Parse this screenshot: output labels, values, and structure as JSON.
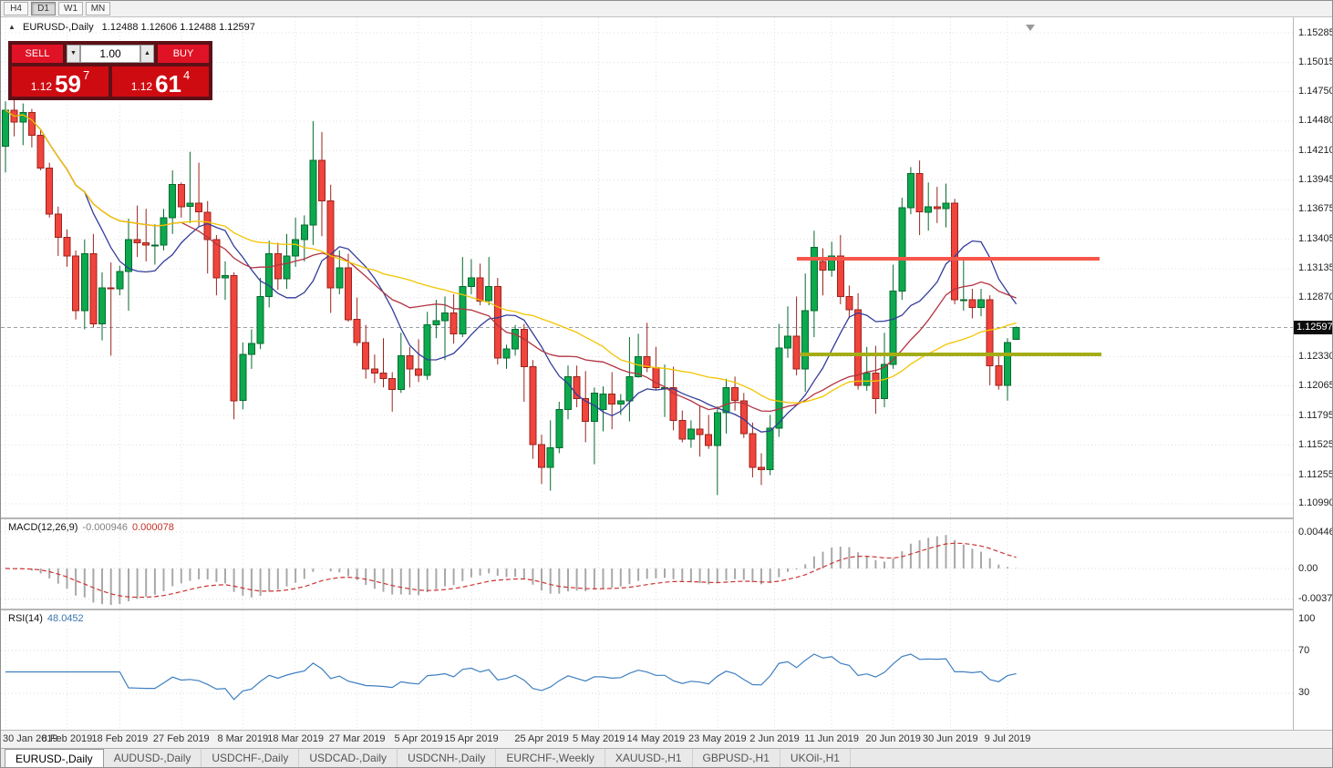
{
  "toolbar": {
    "timeframes": [
      "H4",
      "D1",
      "W1",
      "MN"
    ],
    "active_timeframe": "D1"
  },
  "chart": {
    "symbol": "EURUSD-,Daily",
    "ohlc": "1.12488 1.12606 1.12488 1.12597"
  },
  "one_click": {
    "sell_label": "SELL",
    "buy_label": "BUY",
    "volume": "1.00",
    "sell_price": {
      "prefix": "1.12",
      "big": "59",
      "sup": "7"
    },
    "buy_price": {
      "prefix": "1.12",
      "big": "61",
      "sup": "4"
    }
  },
  "macd": {
    "name": "MACD(12,26,9)",
    "value_main": "-0.000946",
    "value_signal": "0.000078"
  },
  "rsi": {
    "name": "RSI(14)",
    "value": "48.0452"
  },
  "tabs": {
    "active_index": 0,
    "items": [
      "EURUSD-,Daily",
      "AUDUSD-,Daily",
      "USDCHF-,Daily",
      "USDCAD-,Daily",
      "USDCNH-,Daily",
      "EURCHF-,Weekly",
      "XAUUSD-,H1",
      "GBPUSD-,H1",
      "UKOil-,H1"
    ]
  },
  "colors": {
    "bull": "#0ca94e",
    "bull_dark": "#066a2f",
    "bear": "#f0443c",
    "bear_dark": "#9a241d",
    "ma_fast": "#333d99",
    "ma_mid": "#b13441",
    "ma_slow": "#f2c500",
    "macd_hist": "#a8a8a8",
    "macd_signal": "#cc3333",
    "rsi_line": "#3e7fc1",
    "grid": "#e1e1e1",
    "price_line": "#9aa0a6",
    "resistance": "#f7564a",
    "support": "#a4ad17",
    "badge_bg": "#0d0d0d"
  },
  "chart_data": {
    "type": "candlestick",
    "symbol": "EURUSD-,Daily",
    "timeframe": "Daily",
    "ohlc_display": {
      "open": "1.12488",
      "high": "1.12606",
      "low": "1.12488",
      "close": "1.12597"
    },
    "price_axis": {
      "labels": [
        "1.15285",
        "1.15015",
        "1.14750",
        "1.14480",
        "1.14210",
        "1.13945",
        "1.13675",
        "1.13405",
        "1.13135",
        "1.12870",
        "1.12330",
        "1.12065",
        "1.11795",
        "1.11525",
        "1.11255",
        "1.10990"
      ],
      "current": "1.12597"
    },
    "time_axis": [
      {
        "label": "30 Jan 2019",
        "i": 0
      },
      {
        "label": "8 Feb 2019",
        "i": 7
      },
      {
        "label": "18 Feb 2019",
        "i": 13
      },
      {
        "label": "27 Feb 2019",
        "i": 20
      },
      {
        "label": "8 Mar 2019",
        "i": 27
      },
      {
        "label": "18 Mar 2019",
        "i": 33
      },
      {
        "label": "27 Mar 2019",
        "i": 40
      },
      {
        "label": "5 Apr 2019",
        "i": 47
      },
      {
        "label": "15 Apr 2019",
        "i": 53
      },
      {
        "label": "25 Apr 2019",
        "i": 61
      },
      {
        "label": "5 May 2019",
        "i": 67.5
      },
      {
        "label": "14 May 2019",
        "i": 74
      },
      {
        "label": "23 May 2019",
        "i": 81
      },
      {
        "label": "2 Jun 2019",
        "i": 87.5
      },
      {
        "label": "11 Jun 2019",
        "i": 94
      },
      {
        "label": "20 Jun 2019",
        "i": 101
      },
      {
        "label": "30 Jun 2019",
        "i": 107.5
      },
      {
        "label": "9 Jul 2019",
        "i": 114
      }
    ],
    "macd_axis": [
      "0.004465",
      "0.00",
      "-0.003715"
    ],
    "rsi_axis": [
      "100",
      "70",
      "30"
    ],
    "rsi_levels": [
      70,
      30
    ],
    "moving_averages": [
      {
        "period": 10
      },
      {
        "period": 21
      },
      {
        "period": 34
      }
    ],
    "objects": {
      "resistance": {
        "price": 1.1322,
        "from_index": 90.1,
        "to_index": 124.6
      },
      "support": {
        "price": 1.1235,
        "from_index": 90.5,
        "to_index": 124.8
      }
    },
    "candles": [
      [
        1.1425,
        1.1466,
        1.1401,
        1.1458
      ],
      [
        1.1458,
        1.147,
        1.1434,
        1.1447
      ],
      [
        1.1447,
        1.1464,
        1.1426,
        1.1456
      ],
      [
        1.1456,
        1.1459,
        1.1424,
        1.1435
      ],
      [
        1.1435,
        1.144,
        1.1403,
        1.1405
      ],
      [
        1.1405,
        1.141,
        1.136,
        1.1363
      ],
      [
        1.1363,
        1.137,
        1.1325,
        1.1342
      ],
      [
        1.1342,
        1.1349,
        1.1315,
        1.1325
      ],
      [
        1.1325,
        1.133,
        1.1267,
        1.1275
      ],
      [
        1.1275,
        1.134,
        1.1258,
        1.1327
      ],
      [
        1.1327,
        1.1345,
        1.126,
        1.1263
      ],
      [
        1.1263,
        1.131,
        1.1248,
        1.1296
      ],
      [
        1.1296,
        1.1319,
        1.1234,
        1.1295
      ],
      [
        1.1295,
        1.1316,
        1.1289,
        1.1311
      ],
      [
        1.1311,
        1.1359,
        1.1275,
        1.134
      ],
      [
        1.134,
        1.1371,
        1.1324,
        1.1337
      ],
      [
        1.1337,
        1.1368,
        1.132,
        1.1335
      ],
      [
        1.1335,
        1.1354,
        1.1317,
        1.1335
      ],
      [
        1.1335,
        1.1368,
        1.133,
        1.136
      ],
      [
        1.136,
        1.1403,
        1.1345,
        1.139
      ],
      [
        1.139,
        1.1392,
        1.136,
        1.137
      ],
      [
        1.137,
        1.142,
        1.1355,
        1.1373
      ],
      [
        1.1373,
        1.141,
        1.1352,
        1.1365
      ],
      [
        1.1365,
        1.1375,
        1.1309,
        1.134
      ],
      [
        1.134,
        1.1344,
        1.1289,
        1.1305
      ],
      [
        1.1305,
        1.132,
        1.1285,
        1.1307
      ],
      [
        1.1307,
        1.131,
        1.1176,
        1.1193
      ],
      [
        1.1193,
        1.1246,
        1.1185,
        1.1235
      ],
      [
        1.1235,
        1.1258,
        1.1222,
        1.1245
      ],
      [
        1.1245,
        1.1305,
        1.124,
        1.1288
      ],
      [
        1.1288,
        1.1339,
        1.1278,
        1.1327
      ],
      [
        1.1327,
        1.1337,
        1.1294,
        1.1304
      ],
      [
        1.1304,
        1.1345,
        1.1295,
        1.1325
      ],
      [
        1.1325,
        1.136,
        1.1315,
        1.134
      ],
      [
        1.134,
        1.1362,
        1.132,
        1.1353
      ],
      [
        1.1353,
        1.1448,
        1.1335,
        1.1412
      ],
      [
        1.1412,
        1.1438,
        1.1343,
        1.1375
      ],
      [
        1.1375,
        1.139,
        1.1273,
        1.1296
      ],
      [
        1.1296,
        1.133,
        1.129,
        1.1314
      ],
      [
        1.1314,
        1.1327,
        1.1265,
        1.1267
      ],
      [
        1.1267,
        1.1287,
        1.1243,
        1.1246
      ],
      [
        1.1246,
        1.1262,
        1.1213,
        1.1222
      ],
      [
        1.1222,
        1.1235,
        1.1209,
        1.1218
      ],
      [
        1.1218,
        1.125,
        1.1205,
        1.1213
      ],
      [
        1.1213,
        1.1219,
        1.1183,
        1.1203
      ],
      [
        1.1203,
        1.1255,
        1.12,
        1.1234
      ],
      [
        1.1234,
        1.1242,
        1.1205,
        1.1222
      ],
      [
        1.1222,
        1.1249,
        1.121,
        1.1216
      ],
      [
        1.1216,
        1.1274,
        1.1212,
        1.1262
      ],
      [
        1.1262,
        1.1285,
        1.125,
        1.1266
      ],
      [
        1.1266,
        1.1288,
        1.123,
        1.1273
      ],
      [
        1.1273,
        1.129,
        1.1245,
        1.1254
      ],
      [
        1.1254,
        1.1324,
        1.1251,
        1.1297
      ],
      [
        1.1297,
        1.1322,
        1.129,
        1.1305
      ],
      [
        1.1305,
        1.1318,
        1.128,
        1.1284
      ],
      [
        1.1284,
        1.1324,
        1.128,
        1.1297
      ],
      [
        1.1297,
        1.1305,
        1.1226,
        1.1232
      ],
      [
        1.1232,
        1.1244,
        1.1222,
        1.124
      ],
      [
        1.124,
        1.1262,
        1.1234,
        1.1258
      ],
      [
        1.1258,
        1.1263,
        1.1192,
        1.1224
      ],
      [
        1.1224,
        1.123,
        1.114,
        1.1153
      ],
      [
        1.1153,
        1.1162,
        1.1117,
        1.1132
      ],
      [
        1.1132,
        1.1175,
        1.1111,
        1.115
      ],
      [
        1.115,
        1.1192,
        1.1145,
        1.1185
      ],
      [
        1.1185,
        1.1225,
        1.1176,
        1.1215
      ],
      [
        1.1215,
        1.1225,
        1.1187,
        1.1195
      ],
      [
        1.1195,
        1.122,
        1.1155,
        1.1174
      ],
      [
        1.1174,
        1.1205,
        1.1135,
        1.12
      ],
      [
        1.1185,
        1.1206,
        1.1165,
        1.1199
      ],
      [
        1.1199,
        1.1219,
        1.1167,
        1.119
      ],
      [
        1.119,
        1.1199,
        1.118,
        1.1193
      ],
      [
        1.1193,
        1.1251,
        1.1174,
        1.1215
      ],
      [
        1.1215,
        1.1254,
        1.1214,
        1.1233
      ],
      [
        1.1233,
        1.1264,
        1.1219,
        1.1223
      ],
      [
        1.1223,
        1.1242,
        1.1203,
        1.1205
      ],
      [
        1.1205,
        1.1226,
        1.1178,
        1.1205
      ],
      [
        1.1205,
        1.1224,
        1.1166,
        1.1175
      ],
      [
        1.1175,
        1.1184,
        1.1155,
        1.1158
      ],
      [
        1.1158,
        1.1175,
        1.115,
        1.1167
      ],
      [
        1.1167,
        1.1188,
        1.1142,
        1.1162
      ],
      [
        1.1162,
        1.118,
        1.1149,
        1.1152
      ],
      [
        1.1152,
        1.1188,
        1.1107,
        1.1182
      ],
      [
        1.1182,
        1.1213,
        1.1163,
        1.1205
      ],
      [
        1.1205,
        1.1215,
        1.1184,
        1.1193
      ],
      [
        1.1193,
        1.12,
        1.1159,
        1.1163
      ],
      [
        1.1163,
        1.1173,
        1.1123,
        1.1132
      ],
      [
        1.1132,
        1.1145,
        1.1116,
        1.113
      ],
      [
        1.113,
        1.118,
        1.1125,
        1.1168
      ],
      [
        1.1168,
        1.1263,
        1.116,
        1.1241
      ],
      [
        1.1241,
        1.1279,
        1.1232,
        1.1252
      ],
      [
        1.1252,
        1.1288,
        1.1216,
        1.1222
      ],
      [
        1.1222,
        1.1309,
        1.1201,
        1.1275
      ],
      [
        1.1275,
        1.1348,
        1.1251,
        1.1333
      ],
      [
        1.132,
        1.1332,
        1.1289,
        1.1312
      ],
      [
        1.1312,
        1.1338,
        1.1306,
        1.1325
      ],
      [
        1.1325,
        1.1344,
        1.1281,
        1.1288
      ],
      [
        1.1288,
        1.1298,
        1.1268,
        1.1276
      ],
      [
        1.1276,
        1.1291,
        1.1203,
        1.1207
      ],
      [
        1.1207,
        1.1242,
        1.1202,
        1.1218
      ],
      [
        1.1218,
        1.1243,
        1.1181,
        1.1195
      ],
      [
        1.1195,
        1.1255,
        1.1187,
        1.1226
      ],
      [
        1.1226,
        1.1317,
        1.1222,
        1.1293
      ],
      [
        1.1293,
        1.1378,
        1.1285,
        1.1369
      ],
      [
        1.1369,
        1.1406,
        1.1363,
        1.14
      ],
      [
        1.14,
        1.1412,
        1.1344,
        1.1365
      ],
      [
        1.1365,
        1.1392,
        1.1348,
        1.137
      ],
      [
        1.137,
        1.1388,
        1.1355,
        1.1368
      ],
      [
        1.1368,
        1.1391,
        1.1351,
        1.1373
      ],
      [
        1.1373,
        1.1377,
        1.1281,
        1.1285
      ],
      [
        1.1285,
        1.1322,
        1.1275,
        1.1285
      ],
      [
        1.1285,
        1.1295,
        1.1268,
        1.1278
      ],
      [
        1.1278,
        1.1295,
        1.127,
        1.1285
      ],
      [
        1.1285,
        1.1289,
        1.1207,
        1.1225
      ],
      [
        1.1225,
        1.1234,
        1.1203,
        1.1207
      ],
      [
        1.1207,
        1.125,
        1.1193,
        1.1246
      ],
      [
        1.12488,
        1.12606,
        1.12488,
        1.12597
      ]
    ]
  }
}
